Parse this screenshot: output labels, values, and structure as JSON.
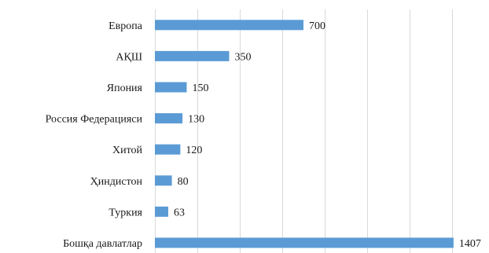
{
  "chart_data": {
    "type": "bar",
    "orientation": "horizontal",
    "categories": [
      "Европа",
      "АҚШ",
      "Япония",
      "Россия Федерацияси",
      "Хитой",
      "Ҳиндистон",
      "Туркия",
      "Бошқа давлатлар"
    ],
    "values": [
      700,
      350,
      150,
      130,
      120,
      80,
      63,
      1407
    ],
    "title": "",
    "xlabel": "",
    "ylabel": "",
    "xlim": [
      0,
      1400
    ],
    "x_ticks_shown": false,
    "grid": true,
    "legend": "none",
    "bar_color": "#5b9bd5",
    "data_labels": true
  }
}
